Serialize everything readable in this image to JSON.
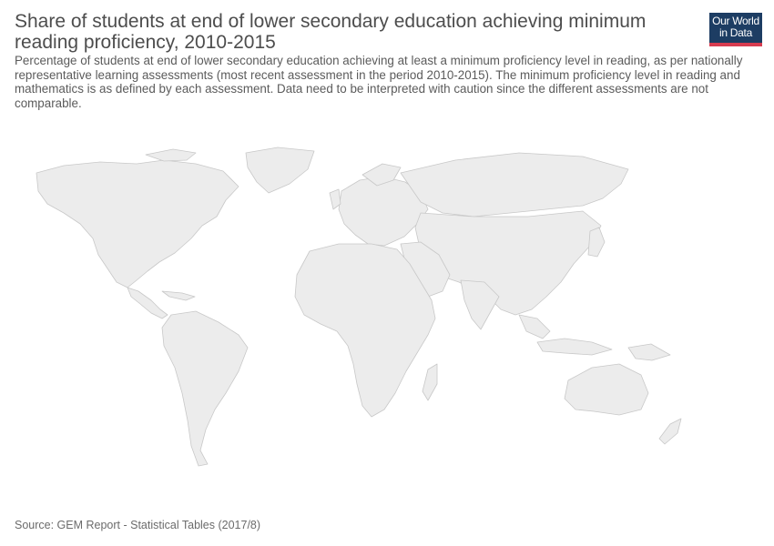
{
  "title": "Share of students at end of lower secondary education achieving minimum reading proficiency, 2010-2015",
  "subtitle": "Percentage of students at end of lower secondary education achieving at least a minimum proficiency level in reading, as per nationally representative learning assessments (most recent assessment in the period 2010-2015). The minimum proficiency level in reading and mathematics is as defined by each assessment. Data need to be interpreted with caution since the different assessments are not comparable.",
  "logo": {
    "line1": "Our World",
    "line2": "in Data",
    "bg_color": "#1d3d63",
    "accent_color": "#d73c50"
  },
  "map": {
    "land_color": "#ececec",
    "border_color": "#c8c8c8"
  },
  "source": "Source: GEM Report - Statistical Tables (2017/8)"
}
